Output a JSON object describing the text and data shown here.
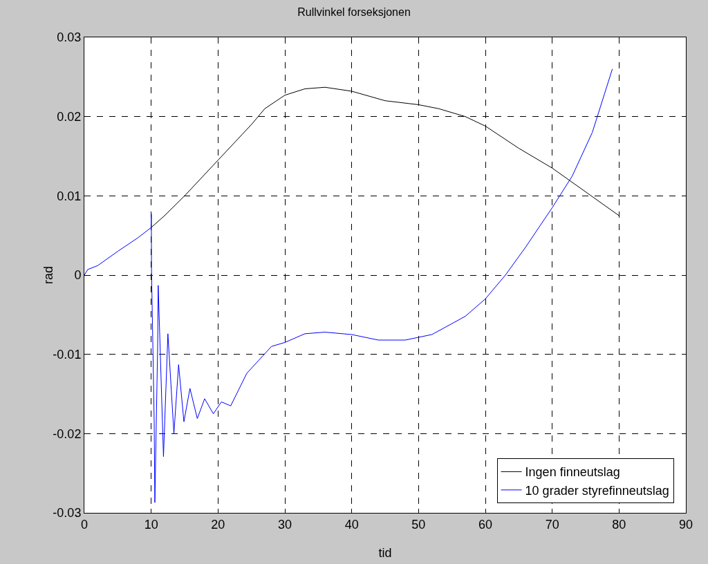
{
  "chart_data": {
    "type": "line",
    "title": "Rullvinkel forseksjonen",
    "xlabel": "tid",
    "ylabel": "rad",
    "xlim": [
      0,
      90
    ],
    "xticks": [
      0,
      10,
      20,
      30,
      40,
      50,
      60,
      70,
      80,
      90
    ],
    "ylim": [
      -0.03,
      0.03
    ],
    "yticks": [
      -0.03,
      -0.02,
      -0.01,
      0,
      0.01,
      0.02,
      0.03
    ],
    "grid": true,
    "legend": "bottom right",
    "line_style": "solid",
    "marker": "none",
    "series": [
      {
        "name": "Ingen finneutslag",
        "color": "#000000",
        "x": [
          10,
          12,
          15,
          20,
          25,
          27,
          30,
          33,
          36,
          40,
          45,
          50,
          53,
          57,
          60,
          65,
          70,
          75,
          80
        ],
        "values": [
          0.006,
          0.0075,
          0.01,
          0.0145,
          0.019,
          0.021,
          0.0227,
          0.0235,
          0.0237,
          0.0232,
          0.022,
          0.0215,
          0.021,
          0.02,
          0.0188,
          0.016,
          0.0135,
          0.0105,
          0.0075
        ]
      },
      {
        "name": "10 grader styrefinneutslag",
        "color": "#0000ff",
        "x": [
          0,
          0.5,
          2,
          5,
          8,
          10,
          10.02,
          10.05,
          10.45,
          10.55,
          10.97,
          11.05,
          11.84,
          12.5,
          13.4,
          14.1,
          14.9,
          15.8,
          16.9,
          18.0,
          19.3,
          20.5,
          21.9,
          24.3,
          28,
          30,
          33,
          36,
          40,
          44,
          48,
          52,
          57,
          60,
          63,
          66,
          70,
          73,
          76,
          79
        ],
        "values": [
          0,
          0.0007,
          0.0012,
          0.003,
          0.0047,
          0.006,
          0.0077,
          0.0006,
          -0.0185,
          -0.0287,
          -0.0089,
          -0.0013,
          -0.0229,
          -0.0074,
          -0.02,
          -0.0113,
          -0.0185,
          -0.0143,
          -0.0181,
          -0.0156,
          -0.0175,
          -0.016,
          -0.0165,
          -0.0124,
          -0.009,
          -0.0085,
          -0.0074,
          -0.0072,
          -0.0075,
          -0.0082,
          -0.0082,
          -0.0075,
          -0.0052,
          -0.003,
          0,
          0.0035,
          0.0085,
          0.0125,
          0.018,
          0.026
        ]
      }
    ]
  }
}
